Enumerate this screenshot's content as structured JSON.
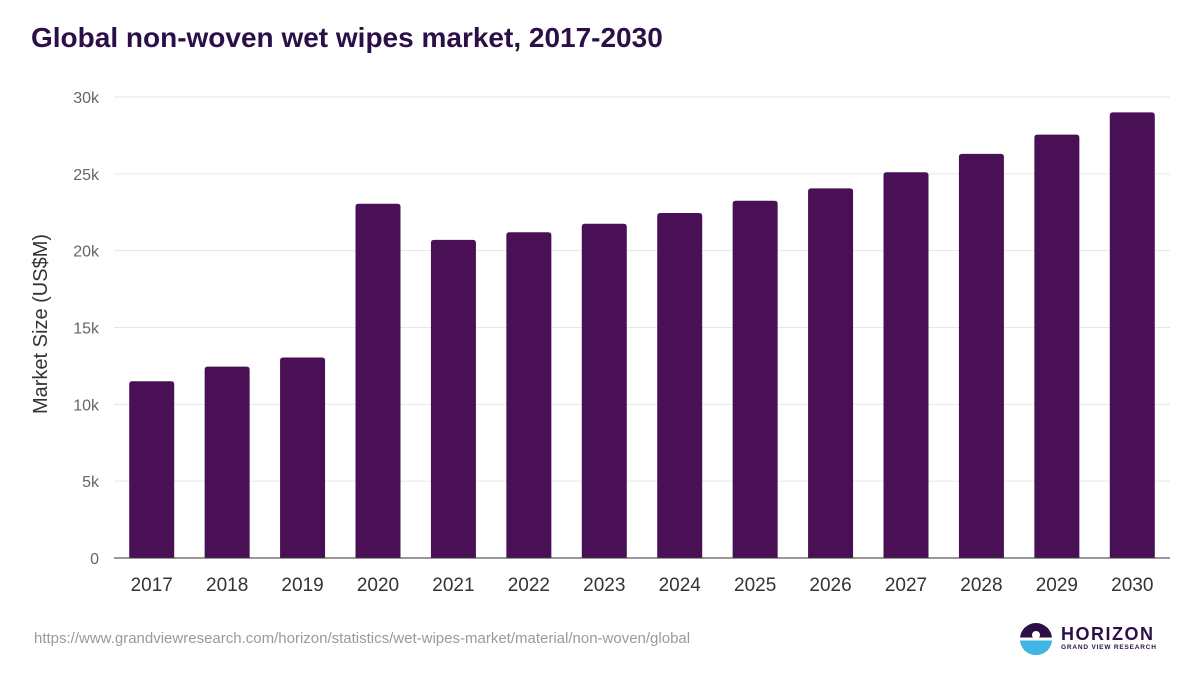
{
  "chart_data": {
    "type": "bar",
    "title": "Global non-woven wet wipes market, 2017-2030",
    "xlabel": "",
    "ylabel": "Market Size (US$M)",
    "categories": [
      "2017",
      "2018",
      "2019",
      "2020",
      "2021",
      "2022",
      "2023",
      "2024",
      "2025",
      "2026",
      "2027",
      "2028",
      "2029",
      "2030"
    ],
    "values": [
      11500,
      12450,
      13050,
      23050,
      20700,
      21200,
      21750,
      22450,
      23250,
      24050,
      25100,
      26300,
      27550,
      29000
    ],
    "ylim": [
      0,
      30000
    ],
    "yticks": [
      0,
      5000,
      10000,
      15000,
      20000,
      25000,
      30000
    ],
    "ytick_labels": [
      "0",
      "5k",
      "10k",
      "15k",
      "20k",
      "25k",
      "30k"
    ],
    "grid": true,
    "colors": {
      "bar": "#4a1055",
      "title": "#2d0f47",
      "grid": "#e6e6e6"
    }
  },
  "footer": {
    "source_url": "https://www.grandviewresearch.com/horizon/statistics/wet-wipes-market/material/non-woven/global"
  },
  "logo": {
    "name": "HORIZON",
    "tagline": "GRAND VIEW RESEARCH",
    "colors": {
      "top": "#2d0f47",
      "bottom": "#3fb6e3"
    }
  }
}
